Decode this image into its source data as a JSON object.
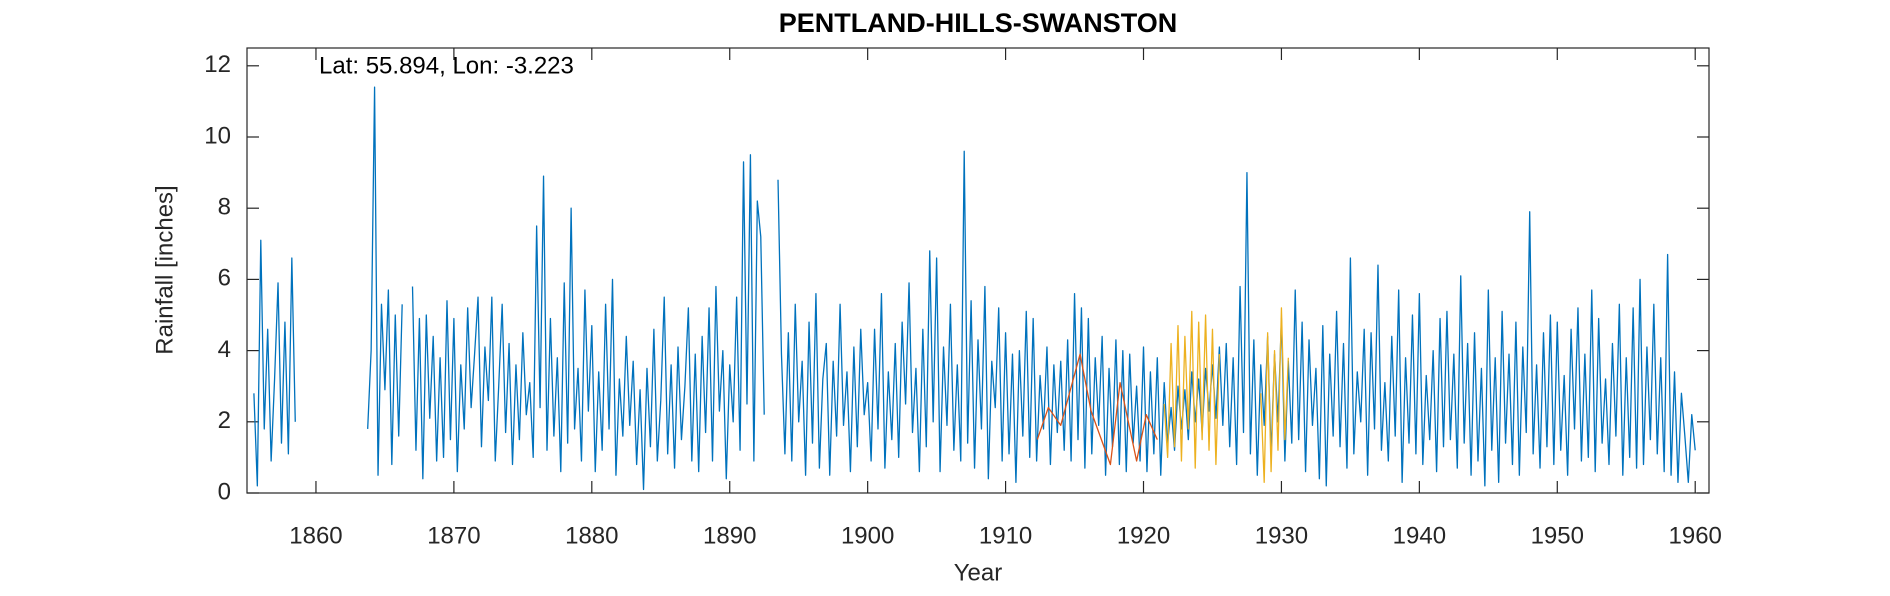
{
  "chart_data": {
    "type": "line",
    "title": "PENTLAND-HILLS-SWANSTON",
    "annotation": "Lat: 55.894, Lon: -3.223",
    "xlabel": "Year",
    "ylabel": "Rainfall [inches]",
    "xlim": [
      1855,
      1961
    ],
    "ylim": [
      0,
      12.5
    ],
    "xticks": [
      1860,
      1870,
      1880,
      1890,
      1900,
      1910,
      1920,
      1930,
      1940,
      1950,
      1960
    ],
    "yticks": [
      0,
      2,
      4,
      6,
      8,
      10,
      12
    ],
    "series": [
      {
        "color": "#0072BD",
        "x": [
          1855.5,
          1855.75,
          1856,
          1856.25,
          1856.5,
          1856.75,
          1857,
          1857.25,
          1857.5,
          1857.75,
          1858,
          1858.25,
          1858.5,
          1858.75,
          1859,
          1859.25,
          1859.5,
          1859.75,
          1860,
          1860.25,
          1860.5,
          1860.75,
          1861,
          1861.25,
          1861.5,
          1861.75,
          1862,
          1862.25,
          1862.5,
          1862.75,
          1863,
          1863.25,
          1863.5,
          1863.75,
          1864,
          1864.25,
          1864.5,
          1864.75,
          1865,
          1865.25,
          1865.5,
          1865.75,
          1866,
          1866.25,
          1866.5,
          1866.75,
          1867,
          1867.25,
          1867.5,
          1867.75,
          1868,
          1868.25,
          1868.5,
          1868.75,
          1869,
          1869.25,
          1869.5,
          1869.75,
          1870,
          1870.25,
          1870.5,
          1870.75,
          1871,
          1871.25,
          1871.5,
          1871.75,
          1872,
          1872.25,
          1872.5,
          1872.75,
          1873,
          1873.25,
          1873.5,
          1873.75,
          1874,
          1874.25,
          1874.5,
          1874.75,
          1875,
          1875.25,
          1875.5,
          1875.75,
          1876,
          1876.25,
          1876.5,
          1876.75,
          1877,
          1877.25,
          1877.5,
          1877.75,
          1878,
          1878.25,
          1878.5,
          1878.75,
          1879,
          1879.25,
          1879.5,
          1879.75,
          1880,
          1880.25,
          1880.5,
          1880.75,
          1881,
          1881.25,
          1881.5,
          1881.75,
          1882,
          1882.25,
          1882.5,
          1882.75,
          1883,
          1883.25,
          1883.5,
          1883.75,
          1884,
          1884.25,
          1884.5,
          1884.75,
          1885,
          1885.25,
          1885.5,
          1885.75,
          1886,
          1886.25,
          1886.5,
          1886.75,
          1887,
          1887.25,
          1887.5,
          1887.75,
          1888,
          1888.25,
          1888.5,
          1888.75,
          1889,
          1889.25,
          1889.5,
          1889.75,
          1890,
          1890.25,
          1890.5,
          1890.75,
          1891,
          1891.25,
          1891.5,
          1891.75,
          1892,
          1892.25,
          1892.5,
          1892.75,
          1893,
          1893.25,
          1893.5,
          1893.75,
          1894,
          1894.25,
          1894.5,
          1894.75,
          1895,
          1895.25,
          1895.5,
          1895.75,
          1896,
          1896.25,
          1896.5,
          1896.75,
          1897,
          1897.25,
          1897.5,
          1897.75,
          1898,
          1898.25,
          1898.5,
          1898.75,
          1899,
          1899.25,
          1899.5,
          1899.75,
          1900,
          1900.25,
          1900.5,
          1900.75,
          1901,
          1901.25,
          1901.5,
          1901.75,
          1902,
          1902.25,
          1902.5,
          1902.75,
          1903,
          1903.25,
          1903.5,
          1903.75,
          1904,
          1904.25,
          1904.5,
          1904.75,
          1905,
          1905.25,
          1905.5,
          1905.75,
          1906,
          1906.25,
          1906.5,
          1906.75,
          1907,
          1907.25,
          1907.5,
          1907.75,
          1908,
          1908.25,
          1908.5,
          1908.75,
          1909,
          1909.25,
          1909.5,
          1909.75,
          1910,
          1910.25,
          1910.5,
          1910.75,
          1911,
          1911.25,
          1911.5,
          1911.75,
          1912,
          1912.25,
          1912.5,
          1912.75,
          1913,
          1913.25,
          1913.5,
          1913.75,
          1914,
          1914.25,
          1914.5,
          1914.75,
          1915,
          1915.25,
          1915.5,
          1915.75,
          1916,
          1916.25,
          1916.5,
          1916.75,
          1917,
          1917.25,
          1917.5,
          1917.75,
          1918,
          1918.25,
          1918.5,
          1918.75,
          1919,
          1919.25,
          1919.5,
          1919.75,
          1920,
          1920.25,
          1920.5,
          1920.75,
          1921,
          1921.25,
          1921.5,
          1921.75,
          1922,
          1922.25,
          1922.5,
          1922.75,
          1923,
          1923.25,
          1923.5,
          1923.75,
          1924,
          1924.25,
          1924.5,
          1924.75,
          1925,
          1925.25,
          1925.5,
          1925.75,
          1926,
          1926.25,
          1926.5,
          1926.75,
          1927,
          1927.25,
          1927.5,
          1927.75,
          1928,
          1928.25,
          1928.5,
          1928.75,
          1929,
          1929.25,
          1929.5,
          1929.75,
          1930,
          1930.25,
          1930.5,
          1930.75,
          1931,
          1931.25,
          1931.5,
          1931.75,
          1932,
          1932.25,
          1932.5,
          1932.75,
          1933,
          1933.25,
          1933.5,
          1933.75,
          1934,
          1934.25,
          1934.5,
          1934.75,
          1935,
          1935.25,
          1935.5,
          1935.75,
          1936,
          1936.25,
          1936.5,
          1936.75,
          1937,
          1937.25,
          1937.5,
          1937.75,
          1938,
          1938.25,
          1938.5,
          1938.75,
          1939,
          1939.25,
          1939.5,
          1939.75,
          1940,
          1940.25,
          1940.5,
          1940.75,
          1941,
          1941.25,
          1941.5,
          1941.75,
          1942,
          1942.25,
          1942.5,
          1942.75,
          1943,
          1943.25,
          1943.5,
          1943.75,
          1944,
          1944.25,
          1944.5,
          1944.75,
          1945,
          1945.25,
          1945.5,
          1945.75,
          1946,
          1946.25,
          1946.5,
          1946.75,
          1947,
          1947.25,
          1947.5,
          1947.75,
          1948,
          1948.25,
          1948.5,
          1948.75,
          1949,
          1949.25,
          1949.5,
          1949.75,
          1950,
          1950.25,
          1950.5,
          1950.75,
          1951,
          1951.25,
          1951.5,
          1951.75,
          1952,
          1952.25,
          1952.5,
          1952.75,
          1953,
          1953.25,
          1953.5,
          1953.75,
          1954,
          1954.25,
          1954.5,
          1954.75,
          1955,
          1955.25,
          1955.5,
          1955.75,
          1956,
          1956.25,
          1956.5,
          1956.75,
          1957,
          1957.25,
          1957.5,
          1957.75,
          1958,
          1958.25,
          1958.5,
          1958.75,
          1959,
          1959.25,
          1959.5,
          1959.75,
          1960
        ],
        "values": [
          2.8,
          0.2,
          7.1,
          1.8,
          4.6,
          0.9,
          3.2,
          5.9,
          1.4,
          4.8,
          1.1,
          6.6,
          2.0,
          null,
          null,
          null,
          null,
          null,
          null,
          null,
          null,
          null,
          null,
          null,
          null,
          null,
          null,
          null,
          null,
          null,
          null,
          null,
          null,
          1.8,
          4.0,
          11.4,
          0.5,
          5.3,
          2.9,
          5.7,
          0.8,
          5.0,
          1.6,
          5.3,
          null,
          null,
          5.8,
          1.2,
          4.9,
          0.4,
          5.0,
          2.1,
          4.4,
          0.9,
          3.8,
          1.0,
          5.4,
          1.5,
          4.9,
          0.6,
          3.6,
          1.8,
          5.2,
          2.4,
          3.9,
          5.5,
          1.3,
          4.1,
          2.6,
          5.5,
          0.9,
          3.0,
          5.3,
          1.7,
          4.2,
          0.8,
          3.6,
          1.5,
          4.5,
          2.2,
          3.1,
          1.0,
          7.5,
          2.4,
          8.9,
          1.2,
          4.9,
          1.6,
          3.8,
          0.6,
          5.9,
          1.4,
          8.0,
          1.8,
          3.5,
          0.9,
          5.7,
          2.3,
          4.7,
          0.6,
          3.4,
          1.2,
          5.3,
          1.8,
          6.0,
          0.5,
          3.2,
          1.6,
          4.4,
          1.9,
          3.7,
          0.8,
          2.9,
          0.1,
          3.5,
          1.3,
          4.6,
          0.9,
          2.6,
          5.5,
          1.1,
          3.6,
          0.7,
          4.1,
          1.5,
          3.0,
          5.2,
          0.9,
          3.9,
          0.6,
          4.4,
          1.7,
          5.2,
          0.9,
          5.8,
          2.3,
          4.0,
          0.4,
          3.6,
          2.0,
          5.5,
          1.2,
          9.3,
          2.5,
          9.5,
          0.9,
          8.2,
          7.2,
          2.2,
          null,
          null,
          null,
          8.8,
          3.9,
          1.1,
          4.5,
          0.9,
          5.3,
          2.0,
          3.7,
          0.5,
          4.8,
          1.4,
          5.6,
          0.7,
          3.2,
          4.2,
          0.5,
          3.7,
          1.6,
          5.3,
          1.9,
          3.4,
          0.6,
          4.1,
          1.3,
          4.6,
          2.2,
          3.1,
          0.9,
          4.6,
          1.8,
          5.6,
          0.7,
          3.4,
          1.5,
          4.2,
          1.0,
          4.8,
          2.5,
          5.9,
          1.7,
          3.5,
          0.6,
          4.6,
          1.3,
          6.8,
          2.0,
          6.6,
          0.6,
          4.1,
          1.9,
          5.3,
          1.2,
          3.6,
          0.9,
          9.6,
          1.4,
          5.4,
          0.7,
          4.3,
          1.8,
          5.8,
          0.4,
          3.7,
          2.4,
          5.2,
          0.9,
          4.5,
          1.1,
          3.9,
          0.3,
          4.0,
          1.6,
          5.1,
          1.0,
          4.9,
          0.9,
          3.3,
          1.8,
          4.1,
          0.8,
          3.6,
          1.7,
          3.7,
          1.2,
          4.3,
          0.9,
          5.6,
          1.5,
          5.2,
          0.7,
          4.9,
          1.1,
          3.8,
          1.9,
          4.4,
          0.5,
          3.5,
          1.3,
          4.3,
          0.8,
          4.0,
          0.6,
          3.9,
          1.4,
          3.0,
          0.9,
          4.1,
          0.6,
          3.4,
          1.1,
          3.8,
          0.5,
          3.1,
          1.4,
          2.4,
          1.2,
          3.0,
          1.8,
          2.9,
          1.5,
          3.4,
          2.0,
          3.2,
          1.7,
          3.5,
          2.3,
          3.6,
          2.1,
          4.1,
          1.9,
          4.2,
          1.3,
          3.8,
          0.8,
          5.8,
          1.7,
          9.0,
          1.1,
          4.3,
          0.5,
          3.6,
          1.9,
          4.4,
          1.1,
          3.9,
          2.0,
          4.9,
          0.9,
          3.7,
          1.4,
          5.7,
          1.5,
          4.8,
          0.6,
          4.3,
          1.9,
          3.5,
          0.4,
          4.7,
          0.2,
          3.9,
          1.6,
          5.1,
          1.3,
          4.2,
          0.7,
          6.6,
          1.1,
          3.4,
          2.0,
          4.6,
          0.5,
          4.5,
          1.8,
          6.4,
          1.2,
          3.1,
          0.9,
          4.4,
          1.6,
          5.7,
          0.3,
          3.8,
          1.4,
          5.0,
          1.1,
          5.6,
          0.8,
          3.3,
          1.5,
          4.0,
          0.6,
          4.9,
          1.3,
          5.1,
          1.5,
          3.9,
          0.7,
          6.1,
          1.4,
          4.2,
          0.5,
          4.5,
          0.9,
          3.5,
          0.2,
          5.7,
          1.2,
          3.8,
          0.3,
          5.1,
          1.4,
          3.9,
          0.8,
          4.8,
          0.5,
          4.1,
          1.7,
          7.9,
          1.1,
          3.6,
          0.7,
          4.5,
          1.3,
          5.0,
          0.8,
          4.8,
          1.2,
          3.3,
          0.5,
          4.6,
          1.8,
          5.2,
          0.9,
          3.9,
          1.0,
          5.7,
          0.6,
          4.9,
          1.4,
          3.2,
          0.8,
          4.2,
          1.6,
          5.3,
          0.5,
          3.8,
          1.0,
          5.2,
          0.7,
          6.0,
          0.8,
          4.1,
          1.5,
          5.3,
          1.1,
          3.8,
          0.6,
          6.7,
          0.5,
          3.4,
          0.3,
          2.8,
          1.6,
          0.3,
          2.2,
          1.2
        ]
      },
      {
        "color": "#D95319",
        "x": [
          1912.3,
          1913.1,
          1914.0,
          1915.4,
          1916.2,
          1917.6,
          1918.3,
          1919.5,
          1920.2,
          1921.0
        ],
        "values": [
          1.5,
          2.4,
          1.9,
          3.9,
          2.3,
          0.8,
          3.1,
          0.9,
          2.2,
          1.5
        ]
      },
      {
        "color": "#EDB120",
        "x": [
          1921.5,
          1921.75,
          1922,
          1922.25,
          1922.5,
          1922.75,
          1923,
          1923.25,
          1923.5,
          1923.75,
          1924,
          1924.25,
          1924.5,
          1924.75,
          1925,
          1925.25,
          1925.5,
          1927,
          1928.5,
          1928.75,
          1929,
          1929.25,
          1929.5,
          1929.75,
          1930,
          1930.25,
          1930.5
        ],
        "values": [
          2.5,
          1.0,
          4.2,
          1.3,
          4.7,
          0.9,
          4.4,
          1.8,
          5.1,
          0.7,
          4.8,
          1.5,
          5.0,
          1.2,
          4.6,
          0.8,
          3.9,
          null,
          2.8,
          0.3,
          4.5,
          0.6,
          4.0,
          1.2,
          5.2,
          1.5,
          3.8
        ]
      }
    ]
  }
}
